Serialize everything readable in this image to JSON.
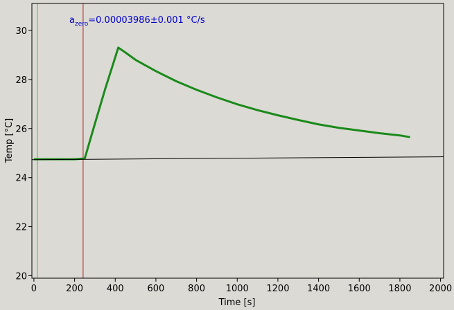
{
  "chart_data": {
    "type": "line",
    "xlabel": "Time [s]",
    "ylabel": "Temp [°C]",
    "annotation": {
      "base": "a",
      "subscript": "zero",
      "text": "=0.00003986±0.001 °C/s",
      "color": "#0000cc"
    },
    "x_series": true,
    "series": [
      {
        "color": "#1a8a1a",
        "width": 3,
        "x": [
          0,
          100,
          200,
          250,
          300,
          350,
          415,
          450,
          500,
          600,
          700,
          800,
          900,
          1000,
          1100,
          1200,
          1300,
          1400,
          1500,
          1600,
          1700,
          1800,
          1850
        ],
        "values": [
          24.75,
          24.75,
          24.75,
          24.78,
          26.2,
          27.6,
          29.3,
          29.1,
          28.8,
          28.34,
          27.93,
          27.58,
          27.27,
          26.99,
          26.75,
          26.54,
          26.35,
          26.17,
          26.03,
          25.92,
          25.81,
          25.72,
          25.65
        ]
      },
      {
        "color": "#000000",
        "width": 1,
        "x": [
          -10,
          2015
        ],
        "values": [
          24.73,
          24.85
        ]
      }
    ],
    "vlines": [
      {
        "x": 17,
        "color": "#33cc33"
      },
      {
        "x": 242,
        "color": "#aa2222"
      }
    ],
    "xlim": [
      -10,
      2015
    ],
    "ylim": [
      19.9,
      31.1
    ],
    "xticks": [
      0,
      200,
      400,
      600,
      800,
      1000,
      1200,
      1400,
      1600,
      1800,
      2000
    ],
    "yticks": [
      20,
      22,
      24,
      26,
      28,
      30
    ]
  }
}
